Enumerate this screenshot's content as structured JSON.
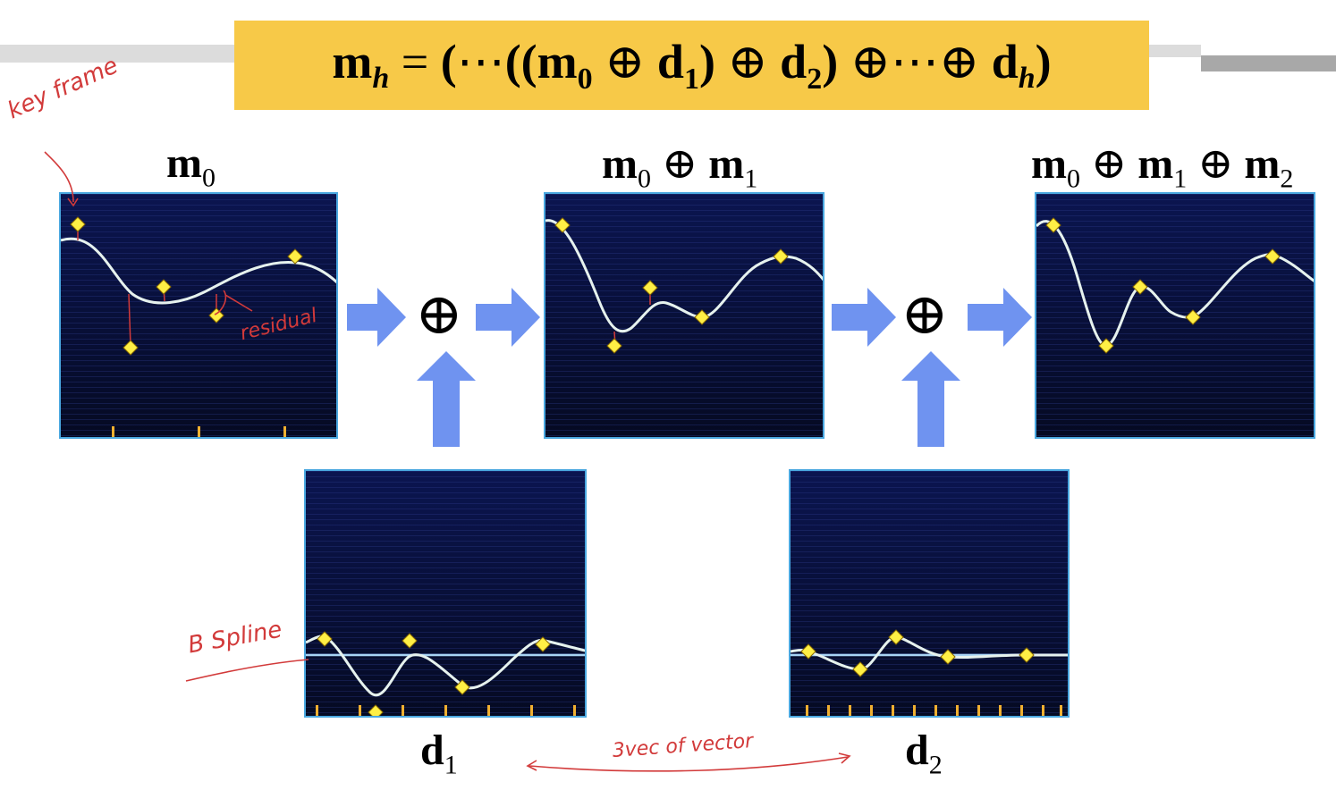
{
  "formula": {
    "lhs_base": "m",
    "lhs_sub": "h",
    "eq": "=",
    "open": "(",
    "ellipsis": "⋯",
    "inner_open": "((",
    "m0_base": "m",
    "m0_sub": "0",
    "oplus": "⊕",
    "d1_base": "d",
    "d1_sub": "1",
    "close": ")",
    "d2_base": "d",
    "d2_sub": "2",
    "dh_base": "d",
    "dh_sub": "h"
  },
  "labels": {
    "m_base": "m",
    "d_base": "d",
    "oplus": "⊕",
    "sub0": "0",
    "sub1": "1",
    "sub2": "2"
  },
  "operators": {
    "oplus_1": "⊕",
    "oplus_2": "⊕"
  },
  "annotations": {
    "key_frame": "key frame",
    "residual": "residual",
    "b_spline": "B Spline",
    "vector": "3vec of vector"
  },
  "colors": {
    "formula_bg": "#f7c948",
    "panel_top": "#0b1550",
    "panel_bottom": "#050a22",
    "panel_border": "#4aa8e0",
    "curve": "#e6f2ee",
    "keyframe": "#ffef45",
    "tick": "#f0b030",
    "arrow": "#6f93f0",
    "annotation": "#d23a3a",
    "baseline": "#a8d4f5"
  }
}
